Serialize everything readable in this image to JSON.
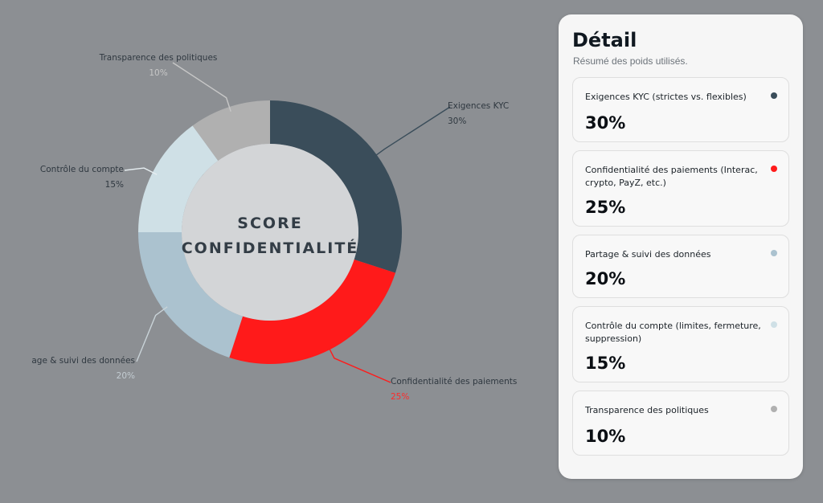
{
  "chart_data": {
    "type": "pie",
    "style": "donut",
    "center_label": [
      "SCORE",
      "CONFIDENTIALITÉ"
    ],
    "slices": [
      {
        "label": "Exigences KYC",
        "value": 30,
        "value_label": "30%",
        "color": "#3a4d5a"
      },
      {
        "label": "Confidentialité des paiements",
        "value": 25,
        "value_label": "25%",
        "color": "#ff1a1a"
      },
      {
        "label": "age & suivi des données",
        "value": 20,
        "value_label": "20%",
        "color": "#abc2cf"
      },
      {
        "label": "Contrôle du compte",
        "value": 15,
        "value_label": "15%",
        "color": "#cfe0e6"
      },
      {
        "label": "Transparence des politiques",
        "value": 10,
        "value_label": "10%",
        "color": "#b0b0b0"
      }
    ]
  },
  "panel": {
    "title": "Détail",
    "subtitle": "Résumé des poids utilisés.",
    "cards": [
      {
        "label": "Exigences KYC (strictes vs. flexibles)",
        "value": "30%",
        "dot_color": "#3a4d5a"
      },
      {
        "label": "Confidentialité des paiements (Interac, crypto, PayZ, etc.)",
        "value": "25%",
        "dot_color": "#ff1a1a"
      },
      {
        "label": "Partage & suivi des données",
        "value": "20%",
        "dot_color": "#abc2cf"
      },
      {
        "label": "Contrôle du compte (limites, fermeture, suppression)",
        "value": "15%",
        "dot_color": "#cfe0e6"
      },
      {
        "label": "Transparence des politiques",
        "value": "10%",
        "dot_color": "#b0b0b0"
      }
    ]
  }
}
